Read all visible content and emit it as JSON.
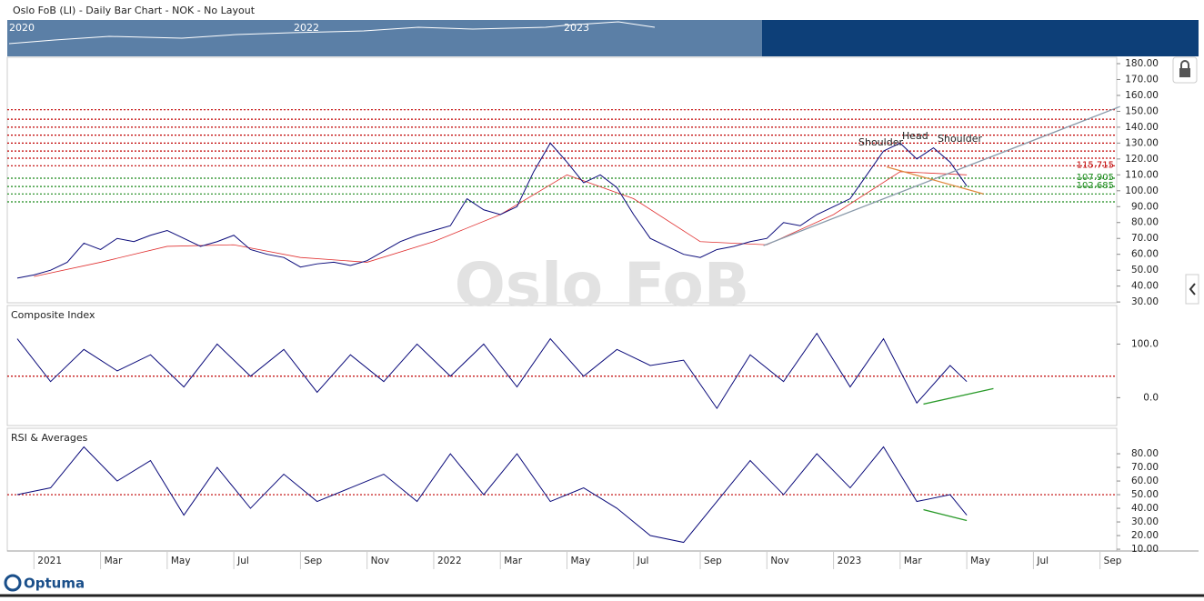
{
  "header": {
    "title": "Oslo FoB (LI) - Daily Bar Chart - NOK - No Layout",
    "navigator_labels": [
      "2020",
      "2022",
      "2023"
    ],
    "watermark": "Oslo FoB",
    "logo": "Optuma"
  },
  "chart_data": [
    {
      "type": "line",
      "title": null,
      "x": [
        -0.5,
        0,
        0.5,
        1,
        1.5,
        2,
        2.5,
        3,
        3.5,
        4,
        4.5,
        5,
        5.5,
        6,
        6.5,
        7,
        7.5,
        8,
        8.5,
        9,
        9.5,
        10,
        10.5,
        11,
        11.5,
        12,
        12.5,
        13,
        13.5,
        14,
        14.5,
        15,
        15.5,
        16,
        16.5,
        17,
        17.5,
        18,
        18.5,
        19,
        19.5,
        20,
        20.5,
        21,
        21.5,
        22,
        22.5,
        23,
        23.5,
        24,
        24.5,
        25,
        25.5,
        26,
        26.5,
        27,
        27.5,
        28
      ],
      "series": [
        {
          "name": null,
          "color": "#0a0a7a",
          "values": [
            45,
            47,
            50,
            55,
            67,
            63,
            70,
            68,
            72,
            75,
            70,
            65,
            68,
            72,
            63,
            60,
            58,
            52,
            54,
            55,
            53,
            56,
            62,
            68,
            72,
            75,
            78,
            95,
            88,
            85,
            90,
            112,
            130,
            118,
            105,
            110,
            102,
            85,
            70,
            65,
            60,
            58,
            63,
            65,
            68,
            70,
            80,
            78,
            85,
            90,
            95,
            110,
            125,
            130,
            120,
            127,
            118,
            103
          ]
        }
      ],
      "ma": {
        "color": "#e03030",
        "x": [
          0,
          2,
          4,
          6,
          8,
          10,
          12,
          14,
          16,
          18,
          20,
          22,
          24,
          26,
          28
        ],
        "values": [
          46,
          55,
          65,
          66,
          58,
          55,
          68,
          85,
          110,
          95,
          68,
          66,
          85,
          112,
          110
        ]
      },
      "levels": [
        {
          "value": 151,
          "color": "#c00000"
        },
        {
          "value": 145,
          "color": "#c00000"
        },
        {
          "value": 140,
          "color": "#c00000"
        },
        {
          "value": 135,
          "color": "#c00000"
        },
        {
          "value": 130,
          "color": "#c00000"
        },
        {
          "value": 125,
          "color": "#c00000"
        },
        {
          "value": 120.5,
          "color": "#c00000"
        },
        {
          "value": 115.715,
          "label": "115.715",
          "color": "#c00000"
        },
        {
          "value": 107.905,
          "label": "107.905",
          "color": "#1a8a1a"
        },
        {
          "value": 102.685,
          "label": "102.685",
          "color": "#1a8a1a"
        },
        {
          "value": 98,
          "color": "#1a8a1a"
        },
        {
          "value": 93,
          "color": "#1a8a1a"
        }
      ],
      "trendlines": [
        {
          "x": [
            21.9,
            32.6
          ],
          "values": [
            65.5,
            153
          ],
          "color": "#8a9aaa"
        },
        {
          "x": [
            25.6,
            28.5
          ],
          "values": [
            115,
            98
          ],
          "color": "#e08a40"
        }
      ],
      "annotations": [
        "Shoulder",
        "Head",
        "Shoulder"
      ],
      "xlim": [
        -0.8,
        32.5
      ],
      "ylim": [
        29.5,
        184
      ],
      "yticks": [
        {
          "value": 30,
          "label": "30.00"
        },
        {
          "value": 40,
          "label": "40.00"
        },
        {
          "value": 50,
          "label": "50.00"
        },
        {
          "value": 60,
          "label": "60.00"
        },
        {
          "value": 70,
          "label": "70.00"
        },
        {
          "value": 80,
          "label": "80.00"
        },
        {
          "value": 90,
          "label": "90.00"
        },
        {
          "value": 100,
          "label": "100.00"
        },
        {
          "value": 110,
          "label": "110.00"
        },
        {
          "value": 120,
          "label": "120.00"
        },
        {
          "value": 130,
          "label": "130.00"
        },
        {
          "value": 140,
          "label": "140.00"
        },
        {
          "value": 150,
          "label": "150.00"
        },
        {
          "value": 160,
          "label": "160.00"
        },
        {
          "value": 170,
          "label": "170.00"
        },
        {
          "value": 180,
          "label": "180.00"
        }
      ]
    },
    {
      "type": "line",
      "title": "Composite Index",
      "x": [
        -0.5,
        0.5,
        1.5,
        2.5,
        3.5,
        4.5,
        5.5,
        6.5,
        7.5,
        8.5,
        9.5,
        10.5,
        11.5,
        12.5,
        13.5,
        14.5,
        15.5,
        16.5,
        17.5,
        18.5,
        19.5,
        20.5,
        21.5,
        22.5,
        23.5,
        24.5,
        25.5,
        26.5,
        27.5,
        28
      ],
      "series": [
        {
          "name": null,
          "color": "#0a0a7a",
          "values": [
            110,
            30,
            90,
            50,
            80,
            20,
            100,
            40,
            90,
            10,
            80,
            30,
            100,
            40,
            100,
            20,
            110,
            40,
            90,
            60,
            70,
            -20,
            80,
            30,
            120,
            20,
            110,
            -10,
            60,
            30
          ]
        }
      ],
      "levels": [
        {
          "value": 40,
          "color": "#c00000"
        }
      ],
      "trendlines": [
        {
          "x": [
            26.7,
            28.8
          ],
          "values": [
            -12,
            17
          ],
          "color": "#2a9a2a"
        }
      ],
      "xlim": [
        -0.8,
        32.5
      ],
      "ylim": [
        -52,
        172
      ],
      "yticks": [
        {
          "value": 0,
          "label": "0.0"
        },
        {
          "value": 100,
          "label": "100.0"
        }
      ]
    },
    {
      "type": "line",
      "title": "RSI & Averages",
      "x": [
        -0.5,
        0.5,
        1.5,
        2.5,
        3.5,
        4.5,
        5.5,
        6.5,
        7.5,
        8.5,
        9.5,
        10.5,
        11.5,
        12.5,
        13.5,
        14.5,
        15.5,
        16.5,
        17.5,
        18.5,
        19.5,
        20.5,
        21.5,
        22.5,
        23.5,
        24.5,
        25.5,
        26.5,
        27.5,
        28
      ],
      "series": [
        {
          "name": null,
          "color": "#0a0a7a",
          "values": [
            50,
            55,
            85,
            60,
            75,
            35,
            70,
            40,
            65,
            45,
            55,
            65,
            45,
            80,
            50,
            80,
            45,
            55,
            40,
            20,
            15,
            45,
            75,
            50,
            80,
            55,
            85,
            45,
            50,
            35
          ]
        }
      ],
      "levels": [
        {
          "value": 50,
          "color": "#c00000"
        }
      ],
      "trendlines": [
        {
          "x": [
            26.7,
            28
          ],
          "values": [
            39,
            31
          ],
          "color": "#2a9a2a"
        }
      ],
      "xlim": [
        -0.8,
        32.5
      ],
      "ylim": [
        8.7,
        98.7
      ],
      "yticks": [
        {
          "value": 10,
          "label": "10.00"
        },
        {
          "value": 20,
          "label": "20.00"
        },
        {
          "value": 30,
          "label": "30.00"
        },
        {
          "value": 40,
          "label": "40.00"
        },
        {
          "value": 50,
          "label": "50.00"
        },
        {
          "value": 60,
          "label": "60.00"
        },
        {
          "value": 70,
          "label": "70.00"
        },
        {
          "value": 80,
          "label": "80.00"
        }
      ],
      "xticks": [
        {
          "value": 0,
          "label": "2021"
        },
        {
          "value": 2,
          "label": "Mar"
        },
        {
          "value": 4,
          "label": "May"
        },
        {
          "value": 6,
          "label": "Jul"
        },
        {
          "value": 8,
          "label": "Sep"
        },
        {
          "value": 10,
          "label": "Nov"
        },
        {
          "value": 12,
          "label": "2022"
        },
        {
          "value": 14,
          "label": "Mar"
        },
        {
          "value": 16,
          "label": "May"
        },
        {
          "value": 18,
          "label": "Jul"
        },
        {
          "value": 20,
          "label": "Sep"
        },
        {
          "value": 22,
          "label": "Nov"
        },
        {
          "value": 24,
          "label": "2023"
        },
        {
          "value": 26,
          "label": "Mar"
        },
        {
          "value": 28,
          "label": "May"
        },
        {
          "value": 30,
          "label": "Jul"
        },
        {
          "value": 32,
          "label": "Sep"
        }
      ]
    }
  ]
}
